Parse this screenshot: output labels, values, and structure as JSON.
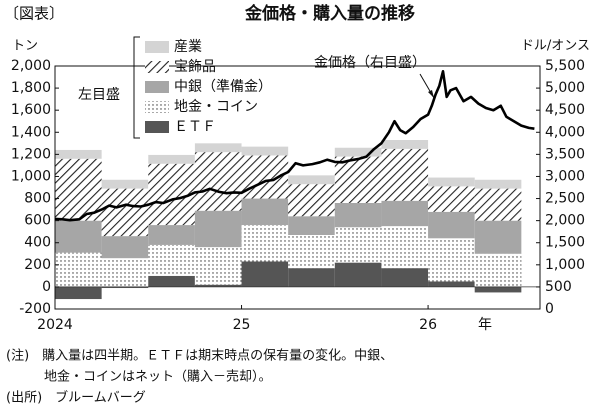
{
  "chart_data": {
    "type": "stacked-bar-line",
    "label": "〔図表〕",
    "title": "金価格・購入量の推移",
    "ylabel": "トン",
    "y2label": "ドル/オンス",
    "left_axis_note": "左目盛",
    "x_unit": "年",
    "xlim": [
      2024,
      2026.6
    ],
    "xticks": [
      2024,
      {
        "value": 2025,
        "label": "25"
      },
      {
        "value": 2026,
        "label": "26"
      }
    ],
    "ylim": [
      -200,
      2000
    ],
    "yticks": [
      {
        "value": 2000,
        "label": "2,000"
      },
      {
        "value": 1800,
        "label": "1,800"
      },
      {
        "value": 1600,
        "label": "1,600"
      },
      {
        "value": 1400,
        "label": "1,400"
      },
      {
        "value": 1200,
        "label": "1,200"
      },
      {
        "value": 1000,
        "label": "1,000"
      },
      800,
      600,
      400,
      200,
      0,
      -200
    ],
    "y2lim": [
      0,
      5500
    ],
    "y2ticks": [
      {
        "value": 5500,
        "label": "5,500"
      },
      {
        "value": 5000,
        "label": "5,000"
      },
      {
        "value": 4500,
        "label": "4,500"
      },
      {
        "value": 4000,
        "label": "4,000"
      },
      {
        "value": 3500,
        "label": "3,500"
      },
      {
        "value": 3000,
        "label": "3,000"
      },
      {
        "value": 2500,
        "label": "2,500"
      },
      {
        "value": 2000,
        "label": "2,000"
      },
      {
        "value": 1500,
        "label": "1,500"
      },
      {
        "value": 1000,
        "label": "1,000"
      },
      500,
      0
    ],
    "categories": [
      null,
      null,
      null,
      null,
      null,
      null,
      null,
      null,
      null,
      null
    ],
    "series": [
      {
        "name": "ＥＴＦ",
        "color": "#555555",
        "values": [
          -110,
          -10,
          100,
          20,
          230,
          170,
          220,
          170,
          50,
          -50
        ]
      },
      {
        "name": "地金・コイン",
        "color": "#333333",
        "pattern": "dots",
        "values": [
          310,
          260,
          280,
          340,
          330,
          300,
          320,
          380,
          390,
          300
        ]
      },
      {
        "name": "中銀（準備金）",
        "color": "#a6a6a6",
        "values": [
          290,
          200,
          180,
          330,
          240,
          170,
          220,
          230,
          240,
          300
        ]
      },
      {
        "name": "宝飾品",
        "color": "#222222",
        "pattern": "hatch",
        "values": [
          560,
          430,
          555,
          530,
          390,
          290,
          420,
          470,
          230,
          290
        ]
      },
      {
        "name": "産業",
        "color": "#d4d4d4",
        "values": [
          80,
          80,
          80,
          80,
          80,
          80,
          80,
          80,
          80,
          80
        ]
      },
      {
        "name": "金価格（右目盛）",
        "type": "line",
        "axis": "y2",
        "color": "#000000",
        "x": [
          2024.0,
          2024.04,
          2024.08,
          2024.13,
          2024.17,
          2024.21,
          2024.25,
          2024.29,
          2024.33,
          2024.38,
          2024.42,
          2024.46,
          2024.5,
          2024.54,
          2024.58,
          2024.63,
          2024.67,
          2024.71,
          2024.75,
          2024.79,
          2024.83,
          2024.88,
          2024.92,
          2024.96,
          2025.0,
          2025.04,
          2025.08,
          2025.13,
          2025.17,
          2025.21,
          2025.25,
          2025.29,
          2025.33,
          2025.38,
          2025.42,
          2025.46,
          2025.5,
          2025.54,
          2025.58,
          2025.63,
          2025.67,
          2025.71,
          2025.75,
          2025.79,
          2025.82,
          2025.85,
          2025.88,
          2025.92,
          2025.96,
          2026.0,
          2026.02,
          2026.04,
          2026.06,
          2026.08,
          2026.1,
          2026.12,
          2026.15,
          2026.19,
          2026.23,
          2026.27,
          2026.31,
          2026.35,
          2026.39,
          2026.42,
          2026.46,
          2026.5,
          2026.54,
          2026.57
        ],
        "values": [
          2040,
          2030,
          2010,
          2030,
          2150,
          2180,
          2250,
          2340,
          2300,
          2360,
          2330,
          2320,
          2360,
          2420,
          2400,
          2480,
          2510,
          2560,
          2640,
          2660,
          2720,
          2650,
          2620,
          2640,
          2630,
          2720,
          2800,
          2900,
          2920,
          3020,
          3100,
          3300,
          3250,
          3280,
          3320,
          3380,
          3330,
          3320,
          3360,
          3400,
          3450,
          3620,
          3750,
          4000,
          4250,
          4050,
          3980,
          4120,
          4300,
          4400,
          4600,
          4850,
          5050,
          5380,
          4800,
          4950,
          5000,
          4700,
          4800,
          4650,
          4550,
          4500,
          4600,
          4350,
          4250,
          4150,
          4100,
          4080
        ]
      }
    ],
    "notes": [
      "(注)　購入量は四半期。ＥＴＦは期末時点の保有量の変化。中銀、",
      "地金・コインはネット（購入－売却）。",
      "(出所)　ブルームバーグ"
    ]
  }
}
